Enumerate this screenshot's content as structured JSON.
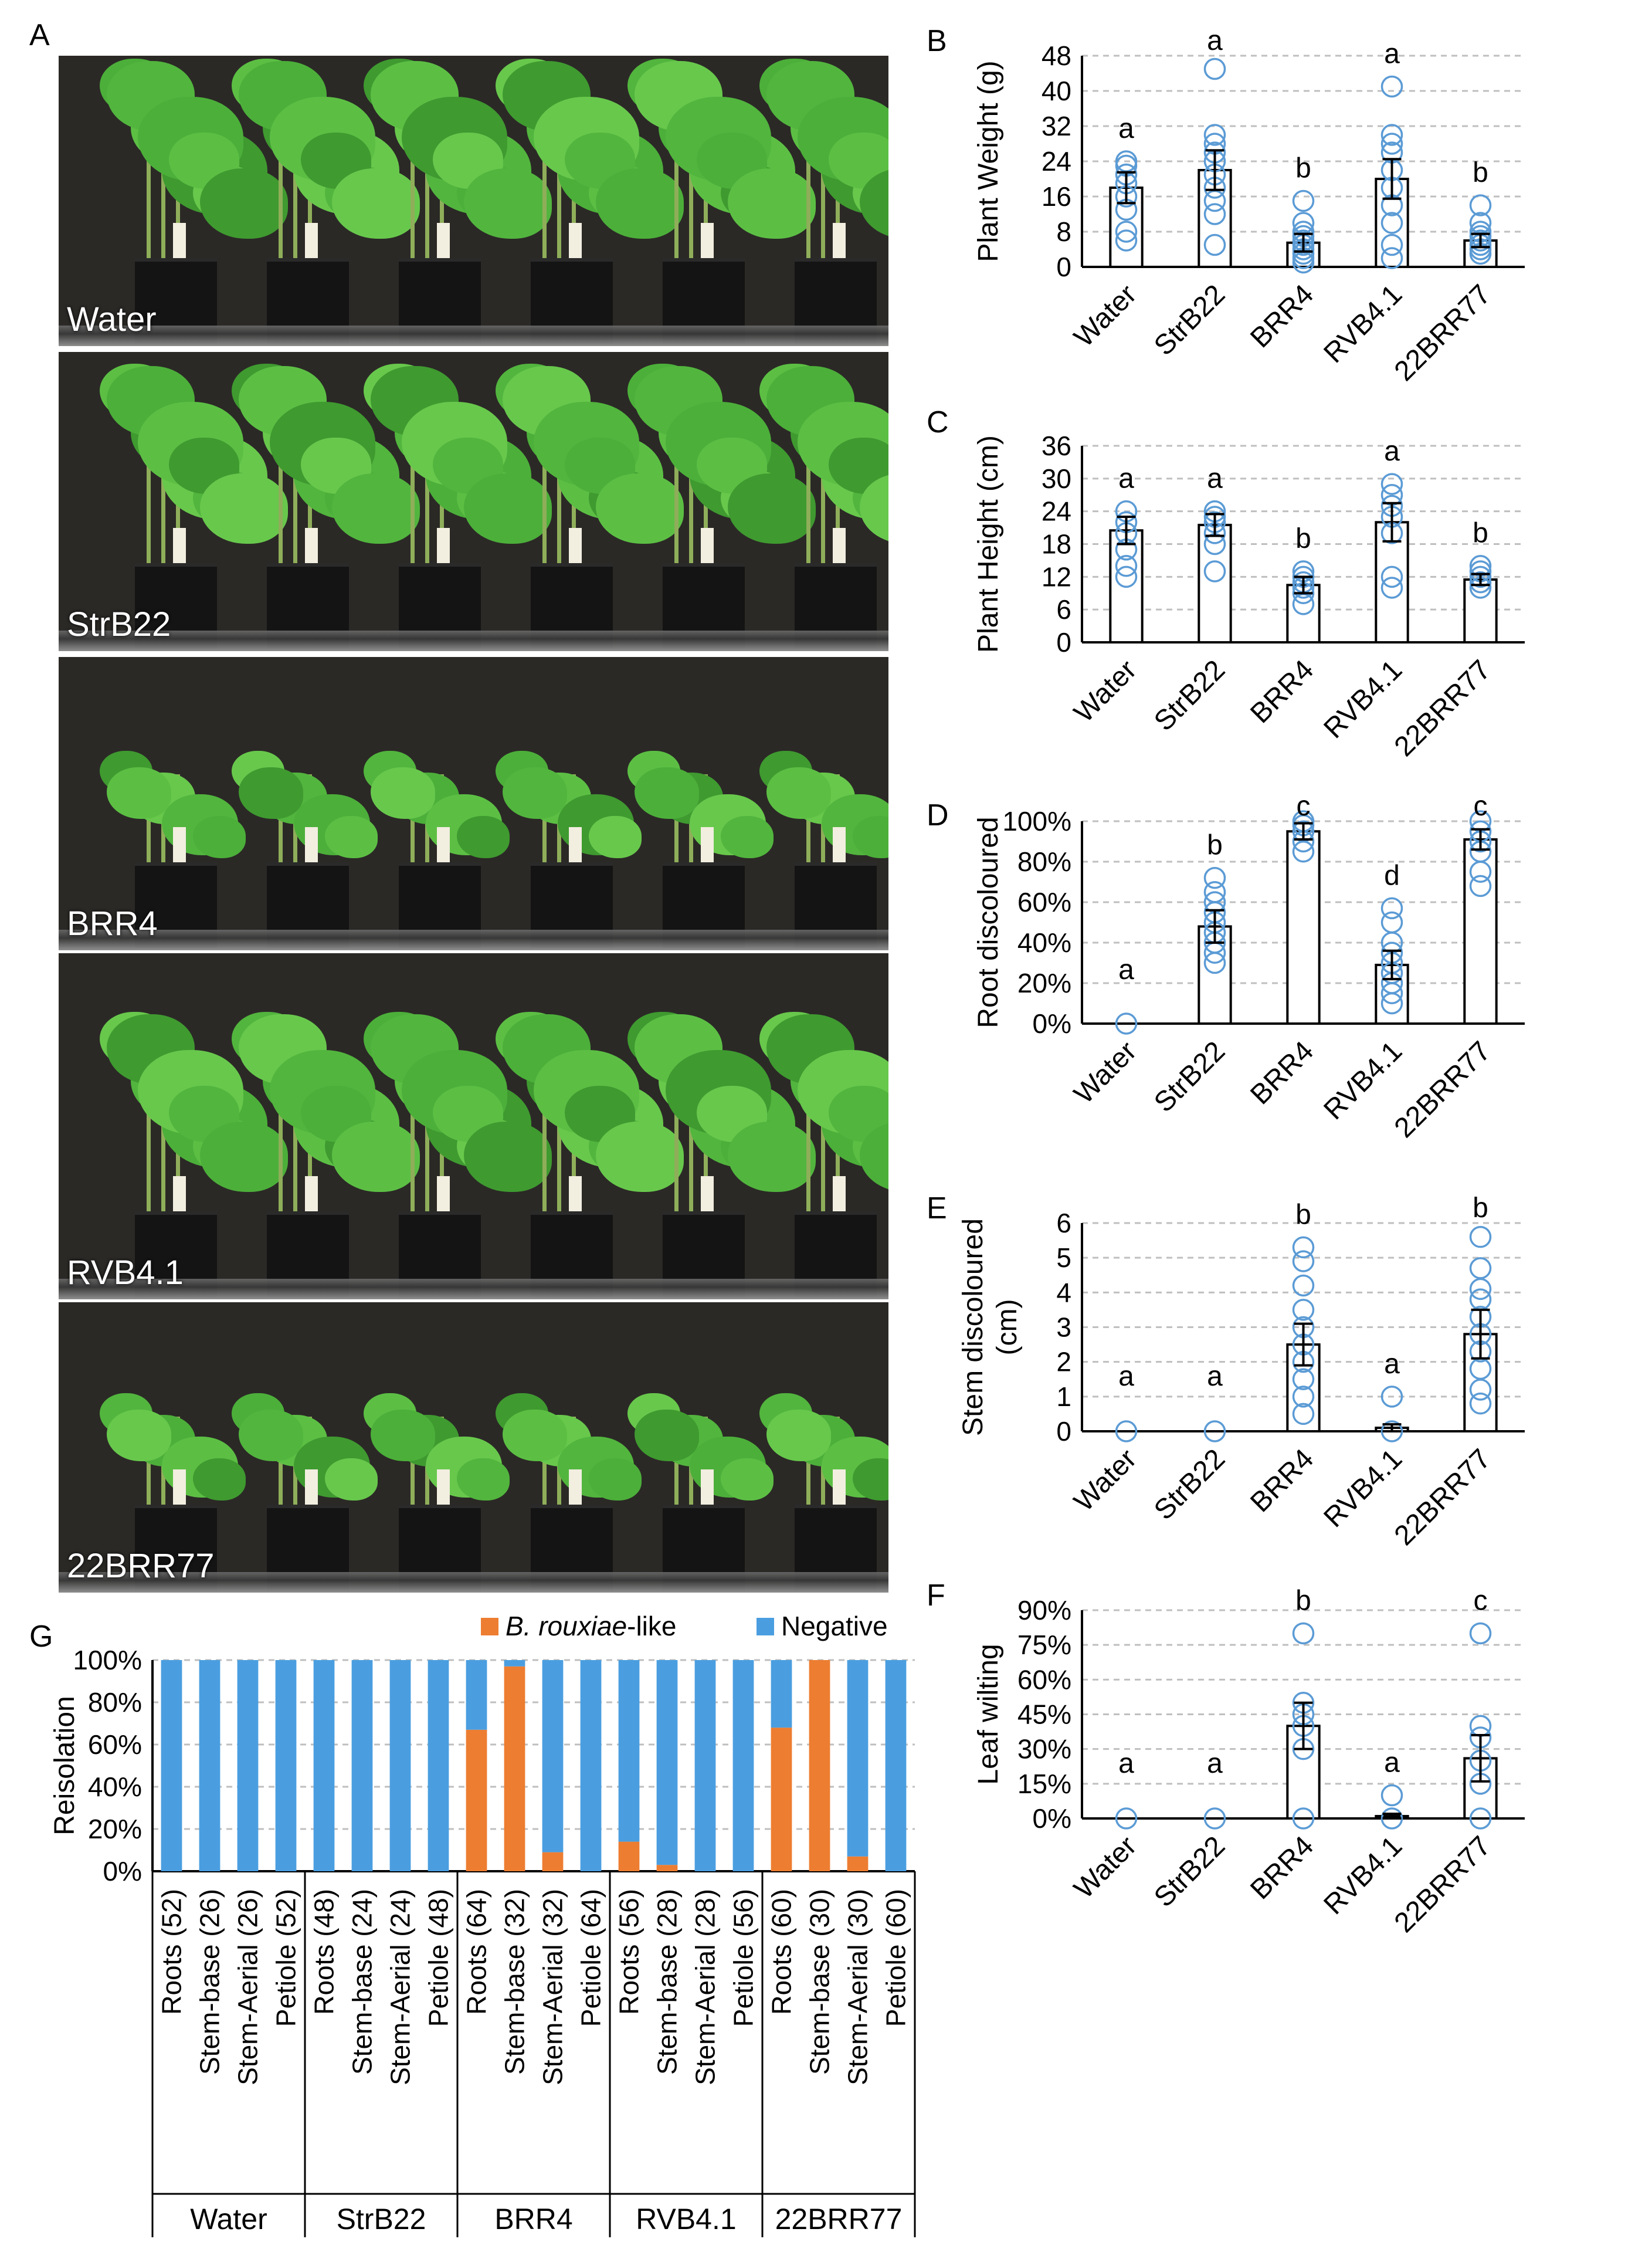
{
  "panels": {
    "A": "A",
    "B": "B",
    "C": "C",
    "D": "D",
    "E": "E",
    "F": "F",
    "G": "G"
  },
  "photo_labels": [
    "Water",
    "StrB22",
    "BRR4",
    "RVB4.1",
    "22BRR77"
  ],
  "colors": {
    "bar_fill": "#ffffff",
    "bar_stroke": "#000000",
    "point": "#5b9bd5",
    "grid": "#bfbfbf",
    "positive": "#ed7d31",
    "negative": "#4a9ee0",
    "leaf": "#4caf3a",
    "backdrop": "#2b2926"
  },
  "chart_data": [
    {
      "id": "B",
      "type": "bar",
      "ylabel": "Plant Weight (g)",
      "yticks": [
        "0",
        "8",
        "16",
        "24",
        "32",
        "40",
        "48"
      ],
      "ylim": [
        0,
        48
      ],
      "categories": [
        "Water",
        "StrB22",
        "BRR4",
        "RVB4.1",
        "22BRR77"
      ],
      "values": [
        18,
        22,
        5.5,
        20,
        6
      ],
      "errors": [
        3.5,
        4.5,
        2,
        4.5,
        1.5
      ],
      "letters": [
        "a",
        "a",
        "b",
        "a",
        "b"
      ],
      "points": [
        [
          6,
          8,
          13,
          16,
          19,
          21,
          23,
          24
        ],
        [
          5,
          12,
          15,
          18,
          21,
          24,
          26,
          28,
          30,
          45
        ],
        [
          1,
          2,
          3,
          4,
          5,
          6,
          7,
          8,
          10,
          15
        ],
        [
          2,
          5,
          10,
          14,
          18,
          22,
          26,
          28,
          30,
          41
        ],
        [
          3,
          4,
          5,
          6,
          7,
          8,
          10,
          14
        ]
      ]
    },
    {
      "id": "C",
      "type": "bar",
      "ylabel": "Plant Height (cm)",
      "yticks": [
        "0",
        "6",
        "12",
        "18",
        "24",
        "30",
        "36"
      ],
      "ylim": [
        0,
        36
      ],
      "categories": [
        "Water",
        "StrB22",
        "BRR4",
        "RVB4.1",
        "22BRR77"
      ],
      "values": [
        20.5,
        21.5,
        10.5,
        22,
        11.5
      ],
      "errors": [
        2.5,
        2,
        1.5,
        3.5,
        1
      ],
      "letters": [
        "a",
        "a",
        "b",
        "a",
        "b"
      ],
      "points": [
        [
          12,
          14,
          17,
          20,
          22,
          24
        ],
        [
          13,
          18,
          20,
          22,
          23,
          24
        ],
        [
          7,
          9,
          10,
          11,
          12,
          13
        ],
        [
          10,
          12,
          20,
          23,
          25,
          27,
          29
        ],
        [
          10,
          11,
          12,
          13,
          14
        ]
      ]
    },
    {
      "id": "D",
      "type": "bar",
      "ylabel": "Root discoloured",
      "yticks": [
        "0%",
        "20%",
        "40%",
        "60%",
        "80%",
        "100%"
      ],
      "ylim": [
        0,
        100
      ],
      "categories": [
        "Water",
        "StrB22",
        "BRR4",
        "RVB4.1",
        "22BRR77"
      ],
      "values": [
        0,
        48,
        95,
        29,
        91
      ],
      "errors": [
        0,
        8,
        4,
        7,
        5
      ],
      "letters": [
        "a",
        "b",
        "c",
        "d",
        "c"
      ],
      "points": [
        [
          0
        ],
        [
          30,
          35,
          40,
          45,
          50,
          55,
          60,
          65,
          72
        ],
        [
          85,
          90,
          95,
          98,
          100
        ],
        [
          10,
          15,
          20,
          25,
          30,
          35,
          40,
          50,
          57
        ],
        [
          68,
          75,
          85,
          90,
          95,
          100
        ]
      ]
    },
    {
      "id": "E",
      "type": "bar",
      "ylabel": "Stem discoloured (cm)",
      "yticks": [
        "0",
        "1",
        "2",
        "3",
        "4",
        "5",
        "6"
      ],
      "ylim": [
        0,
        6
      ],
      "categories": [
        "Water",
        "StrB22",
        "BRR4",
        "RVB4.1",
        "22BRR77"
      ],
      "values": [
        0,
        0,
        2.5,
        0.1,
        2.8
      ],
      "errors": [
        0,
        0,
        0.6,
        0.1,
        0.7
      ],
      "letters": [
        "a",
        "a",
        "b",
        "a",
        "b"
      ],
      "points": [
        [
          0
        ],
        [
          0
        ],
        [
          0.5,
          1,
          1.5,
          2,
          2.5,
          3,
          3.5,
          4.2,
          4.9,
          5.3
        ],
        [
          0,
          1
        ],
        [
          0.8,
          1.2,
          1.8,
          2.3,
          2.8,
          3.3,
          3.8,
          4.1,
          4.7,
          5.6
        ]
      ]
    },
    {
      "id": "F",
      "type": "bar",
      "ylabel": "Leaf wilting",
      "yticks": [
        "0%",
        "15%",
        "30%",
        "45%",
        "60%",
        "75%",
        "90%"
      ],
      "ylim": [
        0,
        90
      ],
      "categories": [
        "Water",
        "StrB22",
        "BRR4",
        "RVB4.1",
        "22BRR77"
      ],
      "values": [
        0,
        0,
        40,
        1,
        26
      ],
      "errors": [
        0,
        0,
        10,
        1,
        10
      ],
      "letters": [
        "a",
        "a",
        "b",
        "a",
        "c"
      ],
      "points": [
        [
          0
        ],
        [
          0
        ],
        [
          0,
          30,
          40,
          45,
          50,
          80
        ],
        [
          0,
          10
        ],
        [
          0,
          15,
          25,
          35,
          40,
          80
        ]
      ]
    },
    {
      "id": "G",
      "type": "bar",
      "stacked": true,
      "ylabel": "Reisolation",
      "yticks": [
        "0%",
        "20%",
        "40%",
        "60%",
        "80%",
        "100%"
      ],
      "ylim": [
        0,
        100
      ],
      "legend": [
        "B. rouxiae-like",
        "Negative"
      ],
      "legend_italic": "B. rouxiae",
      "legend_suffix": "-like",
      "groups": [
        "Water",
        "StrB22",
        "BRR4",
        "RVB4.1",
        "22BRR77"
      ],
      "categories": [
        "Roots (52)",
        "Stem-base (26)",
        "Stem-Aerial (26)",
        "Petiole (52)",
        "Roots (48)",
        "Stem-base (24)",
        "Stem-Aerial (24)",
        "Petiole (48)",
        "Roots (64)",
        "Stem-base (32)",
        "Stem-Aerial (32)",
        "Petiole (64)",
        "Roots (56)",
        "Stem-base (28)",
        "Stem-Aerial (28)",
        "Petiole (56)",
        "Roots (60)",
        "Stem-base (30)",
        "Stem-Aerial (30)",
        "Petiole (60)"
      ],
      "series": [
        {
          "name": "B. rouxiae-like",
          "values": [
            0,
            0,
            0,
            0,
            0,
            0,
            0,
            0,
            67,
            97,
            9,
            0,
            14,
            3,
            0,
            0,
            68,
            100,
            7,
            0
          ]
        },
        {
          "name": "Negative",
          "values": [
            100,
            100,
            100,
            100,
            100,
            100,
            100,
            100,
            33,
            3,
            91,
            100,
            86,
            97,
            100,
            100,
            32,
            0,
            93,
            100
          ]
        }
      ]
    }
  ]
}
